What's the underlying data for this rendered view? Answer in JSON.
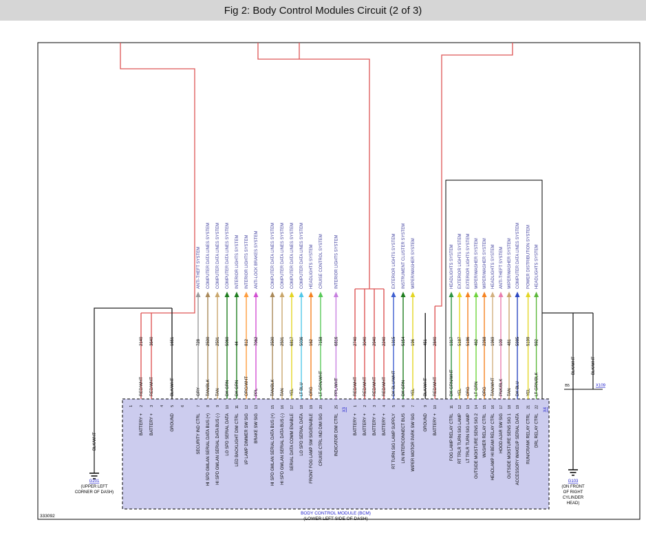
{
  "header": {
    "title": "Fig 2: Body Control Modules Circuit (2 of 3)"
  },
  "figure_code": "333092",
  "bcm": {
    "name": "BODY CONTROL MODULE (BCM)",
    "location": "(LOWER LEFT SIDE OF DASH)"
  },
  "connectors": {
    "x3": "X3",
    "x4": "X4",
    "inline": {
      "pin": "B5",
      "id": "X109"
    }
  },
  "grounds": {
    "left": {
      "id": "G201",
      "wire_label": "BLK/WHT",
      "location_lines": [
        "(UPPER LEFT",
        "CORNER OF DASH)"
      ]
    },
    "right": {
      "id": "G103",
      "wire_labels": [
        "BLK/WHT",
        "BLK/WHT"
      ],
      "location_lines": [
        "(ON FRONT",
        "OF RIGHT",
        "CYLINDER",
        "HEAD)"
      ]
    }
  },
  "colors": {
    "header_bg": "#d6d6d6",
    "harness_red": "#dd5353",
    "dest_label": "#3c3c9c",
    "link": "#2222cc",
    "bcm_fill": "#ccccee",
    "wire": {
      "RED/WHT": "#dd5353",
      "BLK/WHT": "#222222",
      "GRY": "#9a9a9a",
      "TAN/BLK": "#a98858",
      "TAN": "#c9a66b",
      "DK GRN": "#1e7d1e",
      "ORG/WHT": "#ff9d3c",
      "PPL": "#d24fd2",
      "YEL": "#e3d522",
      "LT BLU": "#4fc7e8",
      "ORG": "#f58220",
      "LT GRN/WHT": "#57c957",
      "PPL/WHT": "#c77fe0",
      "DK BLU/WHT": "#3f5fd0",
      "LT GRN": "#6fd43c",
      "TAN/WHT": "#d2b07f",
      "PNK/BLK": "#ea7fb0",
      "DK BLU": "#2a46c0",
      "LT GRN/BLK": "#5cb83a",
      "DK GRN/WHT": "#2c9440"
    }
  },
  "unused_pins": [
    {
      "g": "A",
      "slot": 0,
      "pin": "1"
    },
    {
      "g": "A",
      "slot": 3,
      "pin": "4"
    },
    {
      "g": "A",
      "slot": 5,
      "pin": "6"
    }
  ],
  "wires": [
    {
      "g": "A",
      "slot": 1,
      "pin": "2",
      "label": "BATTERY +",
      "color": "RED/WHT",
      "circuit": "2140",
      "dest": null,
      "route": "red-a"
    },
    {
      "g": "A",
      "slot": 2,
      "pin": "3",
      "label": "BATTERY +",
      "color": "RED/WHT",
      "circuit": "3640",
      "dest": null,
      "route": "red-a"
    },
    {
      "g": "A",
      "slot": 4,
      "pin": "5",
      "label": "GROUND",
      "color": "BLK/WHT",
      "circuit": "1651",
      "dest": null,
      "route": "gnd-left"
    },
    {
      "g": "B",
      "slot": 0,
      "pin": "7",
      "label": "SECURITY IND CTRL",
      "color": "GRY",
      "circuit": "728",
      "dest": "ANTI-THEFT SYSTEM",
      "route": "arrow"
    },
    {
      "g": "B",
      "slot": 1,
      "pin": "8",
      "label": "HI SPD GMLAN SERIAL DATA BUS (+)",
      "color": "TAN/BLK",
      "circuit": "2500",
      "dest": "COMPUTER DATA LINES SYSTEM",
      "route": "arrow"
    },
    {
      "g": "B",
      "slot": 2,
      "pin": "9",
      "label": "HI SPD GMLAN SERIAL DATA BUS (-)",
      "color": "TAN",
      "circuit": "2501",
      "dest": "COMPUTER DATA LINES SYSTEM",
      "route": "arrow"
    },
    {
      "g": "B",
      "slot": 3,
      "pin": "10",
      "label": "LO SPD SERIAL DATA",
      "color": "DK GRN",
      "circuit": "5060",
      "dest": "COMPUTER DATA LINES SYSTEM",
      "route": "arrow"
    },
    {
      "g": "B",
      "slot": 4,
      "pin": "11",
      "label": "LED BACKLIGHT DIM CTRL",
      "color": "DK GRN",
      "circuit": "44",
      "dest": "INTERIOR LIGHTS SYSTEM",
      "route": "arrow"
    },
    {
      "g": "B",
      "slot": 5,
      "pin": "12",
      "label": "I/P LAMP DIMMER SW SIG",
      "color": "ORG/WHT",
      "circuit": "812",
      "dest": "INTERIOR LIGHTS SYSTEM",
      "route": "arrow"
    },
    {
      "g": "B",
      "slot": 6,
      "pin": "13",
      "label": "BRAKE SW SIG",
      "color": "PPL",
      "circuit": "7062",
      "dest": "ANTI-LOCK BRAKES SYSTEM",
      "route": "arrow"
    },
    {
      "g": "C",
      "slot": 0,
      "pin": "15",
      "label": "HI SPD GMLAN SERIAL DATA BUS (+)",
      "color": "TAN/BLK",
      "circuit": "2500",
      "dest": "COMPUTER DATA LINES SYSTEM",
      "route": "arrow"
    },
    {
      "g": "C",
      "slot": 1,
      "pin": "16",
      "label": "HI SPD GMLAN SERIAL DATA BUS (-)",
      "color": "TAN",
      "circuit": "2501",
      "dest": "COMPUTER DATA LINES SYSTEM",
      "route": "arrow"
    },
    {
      "g": "C",
      "slot": 2,
      "pin": "17",
      "label": "SERIAL DATA COMM ENABLE",
      "color": "YEL",
      "circuit": "6817",
      "dest": "COMPUTER DATA LINES SYSTEM",
      "route": "arrow"
    },
    {
      "g": "C",
      "slot": 3,
      "pin": "18",
      "label": "LO SPD SERIAL DATA",
      "color": "LT BLU",
      "circuit": "5036",
      "dest": "COMPUTER DATA LINES SYSTEM",
      "route": "arrow"
    },
    {
      "g": "C",
      "slot": 4,
      "pin": "19",
      "label": "FRONT FOG LAMP SW SIG/ENABLE",
      "color": "ORG",
      "circuit": "162",
      "dest": "HEADLIGHTS SYSTEM",
      "route": "arrow"
    },
    {
      "g": "C",
      "slot": 5,
      "pin": "20",
      "label": "CRUISE CTRL IND DIM SIG",
      "color": "LT GRN/WHT",
      "circuit": "7158",
      "dest": "CRUISE CONTROL SYSTEM",
      "route": "arrow"
    },
    {
      "g": "C",
      "slot": 6.6,
      "pin": "25",
      "label": "INDICATOR DIM CTRL",
      "color": "PPL/WHT",
      "circuit": "6816",
      "dest": "INTERIOR LIGHTS SYSTEM",
      "route": "arrow"
    },
    {
      "g": "D",
      "slot": 0,
      "pin": "1",
      "label": "BATTERY +",
      "color": "RED/WHT",
      "circuit": "2740",
      "dest": null,
      "route": "red-b"
    },
    {
      "g": "D",
      "slot": 1,
      "pin": "2",
      "label": "BATTERY +",
      "color": "RED/WHT",
      "circuit": "3040",
      "dest": null,
      "route": "red-b"
    },
    {
      "g": "D",
      "slot": 2,
      "pin": "3",
      "label": "BATTERY +",
      "color": "RED/WHT",
      "circuit": "2940",
      "dest": null,
      "route": "red-b"
    },
    {
      "g": "D",
      "slot": 3,
      "pin": "4",
      "label": "BATTERY +",
      "color": "RED/WHT",
      "circuit": "2240",
      "dest": null,
      "route": "red-b"
    },
    {
      "g": "D",
      "slot": 4,
      "pin": "5",
      "label": "RT TURN SIG LAMP SUPPLY",
      "color": "DK BLU/WHT",
      "circuit": "1315",
      "dest": "EXTERIOR LIGHTS SYSTEM",
      "route": "arrow"
    },
    {
      "g": "D",
      "slot": 5,
      "pin": "6",
      "label": "LIN INTERCONNECT BUS",
      "color": "DK GRN",
      "circuit": "5154",
      "dest": "INSTRUMENT CLUSTER SYSTEM",
      "route": "arrow"
    },
    {
      "g": "D",
      "slot": 6,
      "pin": "7",
      "label": "WIPER MOTOR PARK SW SIG",
      "color": "YEL",
      "circuit": "196",
      "dest": "WIPER/WASHER SYSTEM",
      "route": "arrow"
    },
    {
      "g": "D",
      "slot": 7.3,
      "pin": "9",
      "label": "GROUND",
      "color": "BLK/WHT",
      "circuit": "451",
      "dest": null,
      "route": "gnd-stub"
    },
    {
      "g": "D",
      "slot": 8.3,
      "pin": "10",
      "label": "BATTERY +",
      "color": "RED/WHT",
      "circuit": "2840",
      "dest": null,
      "route": "red-d"
    },
    {
      "g": "E",
      "slot": 0,
      "pin": "11",
      "label": "FOG LAMP RELAY CTRL",
      "color": "DK GRN/WHT",
      "circuit": "1317",
      "dest": "HEADLIGHTS SYSTEM",
      "route": "arrow"
    },
    {
      "g": "E",
      "slot": 1,
      "pin": "12",
      "label": "RT TRLR TURN SIG LAMP",
      "color": "YEL",
      "circuit": "5187",
      "dest": "EXTERIOR LIGHTS SYSTEM",
      "route": "arrow"
    },
    {
      "g": "E",
      "slot": 2,
      "pin": "13",
      "label": "LT TRLR TURN SIG LAMP",
      "color": "ORG",
      "circuit": "5186",
      "dest": "EXTERIOR LIGHTS SYSTEM",
      "route": "arrow"
    },
    {
      "g": "E",
      "slot": 3,
      "pin": "14",
      "label": "OUTSIDE MOISTURE SENS SIG 2",
      "color": "LT GRN",
      "circuit": "462",
      "dest": "WIPER/WASHER SYSTEM",
      "route": "arrow"
    },
    {
      "g": "E",
      "slot": 4,
      "pin": "15",
      "label": "WASHER RELAY CTRL",
      "color": "ORG",
      "circuit": "2268",
      "dest": "WIPER/WASHER SYSTEM",
      "route": "arrow"
    },
    {
      "g": "E",
      "slot": 5,
      "pin": "16",
      "label": "HEADLAMP HI BEAM RELAY CTRL",
      "color": "TAN/WHT",
      "circuit": "1969",
      "dest": "HEADLIGHTS SYSTEM",
      "route": "arrow"
    },
    {
      "g": "E",
      "slot": 6,
      "pin": "17",
      "label": "HOOD AJAR SW SIG",
      "color": "PNK/BLK",
      "circuit": "109",
      "dest": "ANTI-THEFT SYSTEM",
      "route": "arrow"
    },
    {
      "g": "E",
      "slot": 7,
      "pin": "18",
      "label": "OUTSIDE MOISTURE SENS SIG 1",
      "color": "TAN",
      "circuit": "481",
      "dest": "WIPER/WASHER SYSTEM",
      "route": "arrow"
    },
    {
      "g": "E",
      "slot": 8,
      "pin": "19",
      "label": "ACCESSORY WAKEUP SERIAL DATA",
      "color": "DK BLU",
      "circuit": "5985",
      "dest": "COMPUTER DATA LINES SYSTEM",
      "route": "arrow"
    },
    {
      "g": "E",
      "slot": 9.3,
      "pin": "21",
      "label": "RUN/CRANK RELAY CTRL",
      "color": "YEL",
      "circuit": "5199",
      "dest": "POWER DISTRIBUTION SYSTEM",
      "route": "arrow"
    },
    {
      "g": "E",
      "slot": 10.3,
      "pin": "22",
      "label": "DRL RELAY CTRL",
      "color": "LT GRN/BLK",
      "circuit": "592",
      "dest": "HEADLIGHTS SYSTEM",
      "route": "arrow"
    }
  ]
}
